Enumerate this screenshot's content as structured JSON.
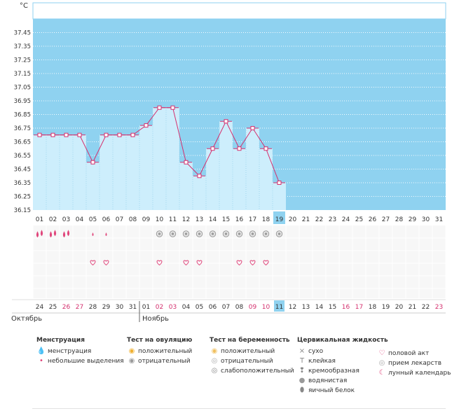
{
  "unit_label": "°C",
  "chart_data": {
    "type": "bar",
    "title": "",
    "xlabel": "",
    "ylabel": "°C",
    "ylim": [
      36.15,
      37.55
    ],
    "yticks": [
      36.15,
      36.25,
      36.35,
      36.45,
      36.55,
      36.65,
      36.75,
      36.85,
      36.95,
      37.05,
      37.15,
      37.25,
      37.35,
      37.45
    ],
    "grid": true,
    "cycle_days": [
      "01",
      "02",
      "03",
      "04",
      "05",
      "06",
      "07",
      "08",
      "09",
      "10",
      "11",
      "12",
      "13",
      "14",
      "15",
      "16",
      "17",
      "18",
      "19",
      "20",
      "21",
      "22",
      "23",
      "24",
      "25",
      "26",
      "27",
      "28",
      "29",
      "30",
      "31"
    ],
    "current_cycle_day": "19",
    "temperatures": [
      36.7,
      36.7,
      36.7,
      36.7,
      36.5,
      36.7,
      36.7,
      36.7,
      36.77,
      36.9,
      36.9,
      36.5,
      36.4,
      36.6,
      36.8,
      36.6,
      36.75,
      36.6,
      36.35
    ]
  },
  "calendar": {
    "dates": [
      "24",
      "25",
      "26",
      "27",
      "28",
      "29",
      "30",
      "31",
      "01",
      "02",
      "03",
      "04",
      "05",
      "06",
      "07",
      "08",
      "09",
      "10",
      "11",
      "12",
      "13",
      "14",
      "15",
      "16",
      "17",
      "18",
      "19",
      "20",
      "21",
      "22",
      "23"
    ],
    "weekend_indices": [
      2,
      3,
      9,
      10,
      16,
      17,
      23,
      24,
      30
    ],
    "today_index": 18,
    "month_start_index": 8,
    "month_left": "Октябрь",
    "month_right": "Ноябрь"
  },
  "symptoms": {
    "menstruation": [
      "heavy",
      "heavy",
      "heavy",
      "",
      "light",
      "light",
      "",
      "",
      "",
      "",
      "",
      "",
      "",
      "",
      "",
      "",
      "",
      "",
      "",
      "",
      "",
      "",
      "",
      "",
      "",
      "",
      "",
      "",
      "",
      "",
      ""
    ],
    "ovulation_test": [
      "",
      "",
      "",
      "",
      "",
      "",
      "",
      "",
      "",
      "neg",
      "neg",
      "neg",
      "neg",
      "neg",
      "neg",
      "neg",
      "neg",
      "neg",
      "neg",
      "",
      "",
      "",
      "",
      "",
      "",
      "",
      "",
      "",
      "",
      "",
      ""
    ],
    "intercourse": [
      false,
      false,
      false,
      false,
      true,
      true,
      false,
      false,
      false,
      true,
      false,
      true,
      true,
      false,
      false,
      true,
      true,
      true,
      false,
      false,
      false,
      false,
      false,
      false,
      false,
      false,
      false,
      false,
      false,
      false,
      false
    ]
  },
  "legend": {
    "groups": [
      {
        "title": "Менструация",
        "items": [
          {
            "icon": "drops-icon",
            "glyph": "💧",
            "color": "#e0447a",
            "label": "менструация"
          },
          {
            "icon": "drop-icon",
            "glyph": "•",
            "color": "#e0447a",
            "label": "небольшие выделения"
          }
        ]
      },
      {
        "title": "Тест на овуляцию",
        "items": [
          {
            "icon": "ovulation-positive-icon",
            "glyph": "◉",
            "color": "#f0b030",
            "label": "положительный"
          },
          {
            "icon": "ovulation-negative-icon",
            "glyph": "◉",
            "color": "#9a9a9a",
            "label": "отрицательный"
          }
        ]
      },
      {
        "title": "Тест на беременность",
        "items": [
          {
            "icon": "pregnancy-positive-icon",
            "glyph": "◉",
            "color": "#f0c060",
            "label": "положительный"
          },
          {
            "icon": "pregnancy-negative-icon",
            "glyph": "◎",
            "color": "#aaaaaa",
            "label": "отрицательный"
          },
          {
            "icon": "pregnancy-weak-icon",
            "glyph": "◎",
            "color": "#888888",
            "label": "слабоположительный"
          }
        ]
      },
      {
        "title": "Цервикальная жидкость",
        "items": [
          {
            "icon": "dry-icon",
            "glyph": "×",
            "color": "#888888",
            "label": "сухо"
          },
          {
            "icon": "sticky-icon",
            "glyph": "T",
            "color": "#888888",
            "label": "клейкая"
          },
          {
            "icon": "creamy-icon",
            "glyph": "❢",
            "color": "#888888",
            "label": "кремообразная"
          },
          {
            "icon": "watery-icon",
            "glyph": "●",
            "color": "#999999",
            "label": "водянистая"
          },
          {
            "icon": "egg-white-icon",
            "glyph": "⬮",
            "color": "#888888",
            "label": "яичный белок"
          }
        ]
      },
      {
        "title": "",
        "items": [
          {
            "icon": "heart-icon",
            "glyph": "♡",
            "color": "#e0447a",
            "label": "половой акт"
          },
          {
            "icon": "medicine-icon",
            "glyph": "◎",
            "color": "#aaaaaa",
            "label": "прием лекарств"
          },
          {
            "icon": "moon-icon",
            "glyph": "☾",
            "color": "#e0447a",
            "label": "лунный календарь"
          }
        ]
      }
    ]
  },
  "colors": {
    "sky": "#8fd2f0",
    "bar": "#cdeefc",
    "line": "#d4306e",
    "weekend": "#d4306e",
    "today": "#8fd2f0",
    "grid": "#c7e6f4"
  }
}
